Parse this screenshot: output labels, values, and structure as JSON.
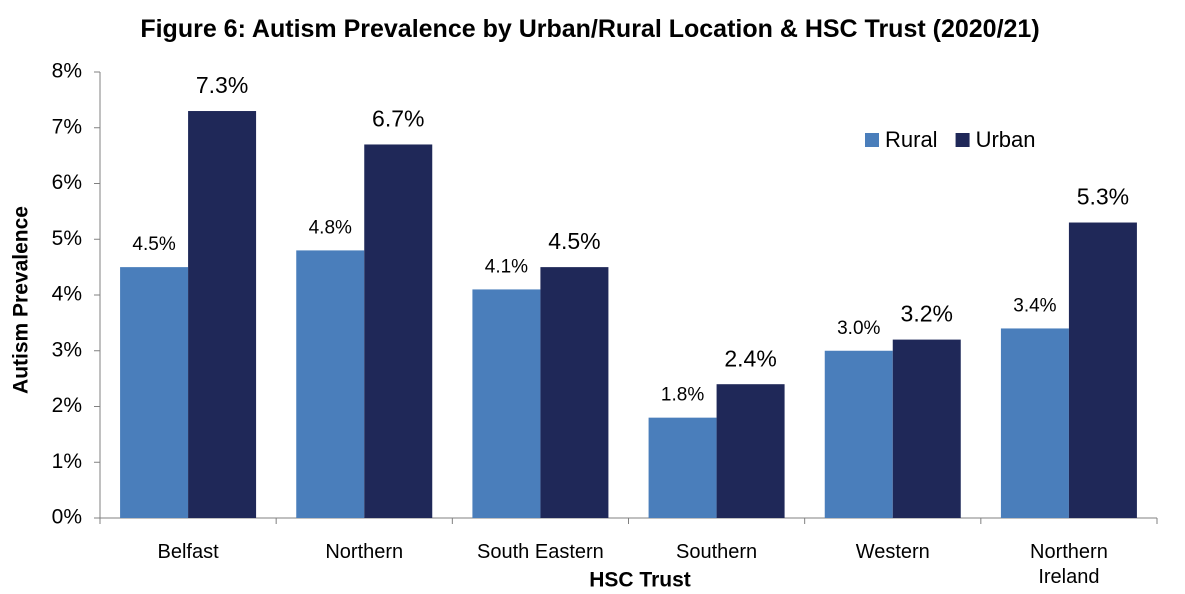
{
  "chart_data": {
    "type": "bar",
    "title": "Figure 6: Autism  Prevalence by Urban/Rural Location & HSC Trust (2020/21)",
    "x_label": "HSC Trust",
    "y_label": "Autism Prevalence",
    "categories": [
      "Belfast",
      "Northern",
      "South Eastern",
      "Southern",
      "Western",
      "Northern Ireland"
    ],
    "series": [
      {
        "name": "Rural",
        "color": "#4a7ebb",
        "values": [
          4.5,
          4.8,
          4.1,
          1.8,
          3.0,
          3.4
        ],
        "value_labels": [
          "4.5%",
          "4.8%",
          "4.1%",
          "1.8%",
          "3.0%",
          "3.4%"
        ]
      },
      {
        "name": "Urban",
        "color": "#1f2858",
        "values": [
          7.3,
          6.7,
          4.5,
          2.4,
          3.2,
          5.3
        ],
        "value_labels": [
          "7.3%",
          "6.7%",
          "4.5%",
          "2.4%",
          "3.2%",
          "5.3%"
        ]
      }
    ],
    "ylim": [
      0,
      8
    ],
    "yticks": [
      {
        "value": 0,
        "label": "0%"
      },
      {
        "value": 1,
        "label": "1%"
      },
      {
        "value": 2,
        "label": "2%"
      },
      {
        "value": 3,
        "label": "3%"
      },
      {
        "value": 4,
        "label": "4%"
      },
      {
        "value": 5,
        "label": "5%"
      },
      {
        "value": 6,
        "label": "6%"
      },
      {
        "value": 7,
        "label": "7%"
      },
      {
        "value": 8,
        "label": "8%"
      }
    ],
    "legend": "top-right"
  }
}
